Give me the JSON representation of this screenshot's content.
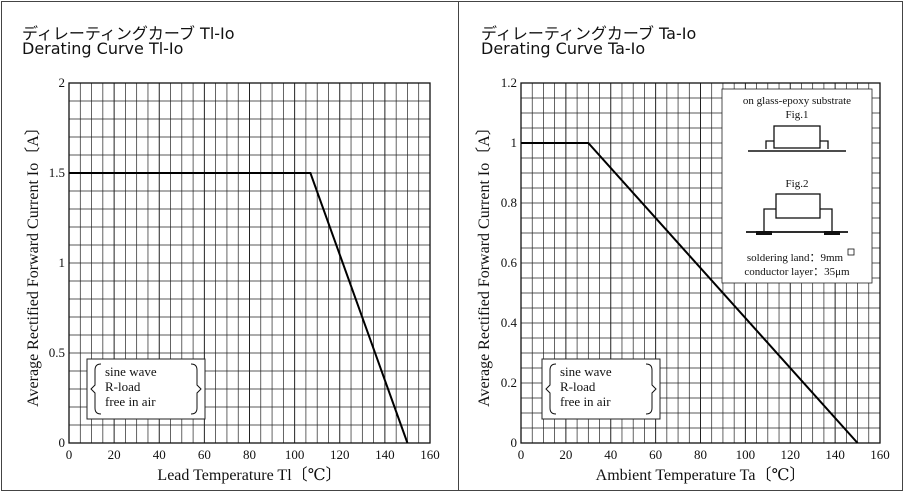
{
  "chart_data": [
    {
      "type": "line",
      "title_jp": "ディレーティングカーブ Tl-Io",
      "title": "Derating Curve  Tl-Io",
      "xlabel": "Lead Temperature Tl〔℃〕",
      "ylabel": "Average Rectified Forward Current Io〔A〕",
      "xlim": [
        0,
        160
      ],
      "ylim": [
        0,
        2
      ],
      "xticks": [
        "0",
        "20",
        "40",
        "60",
        "80",
        "100",
        "120",
        "140",
        "160"
      ],
      "yticks": [
        "0",
        "0.5",
        "1",
        "1.5",
        "2"
      ],
      "grid": true,
      "series": [
        {
          "x": [
            0,
            107,
            150
          ],
          "y": [
            1.5,
            1.5,
            0
          ]
        }
      ],
      "legend_lines": [
        "sine wave",
        "R-load",
        "free in air"
      ]
    },
    {
      "type": "line",
      "title_jp": "ディレーティングカーブ Ta-Io",
      "title": "Derating Curve Ta-Io",
      "xlabel": "Ambient Temperature Ta〔℃〕",
      "ylabel": "Average Rectified Forward Current Io〔A〕",
      "xlim": [
        0,
        160
      ],
      "ylim": [
        0,
        1.2
      ],
      "xticks": [
        "0",
        "20",
        "40",
        "60",
        "80",
        "100",
        "120",
        "140",
        "160"
      ],
      "yticks": [
        "0",
        "0.2",
        "0.4",
        "0.6",
        "0.8",
        "1",
        "1.2"
      ],
      "grid": true,
      "series": [
        {
          "x": [
            0,
            30,
            150
          ],
          "y": [
            1,
            1,
            0
          ]
        }
      ],
      "legend_lines": [
        "sine wave",
        "R-load",
        "free in air"
      ],
      "inset": {
        "heading": "on glass-epoxy substrate",
        "fig1": "Fig.1",
        "fig2": "Fig.2",
        "note1": "soldering land：9mm",
        "note2": "conductor layer：35μm"
      }
    }
  ]
}
